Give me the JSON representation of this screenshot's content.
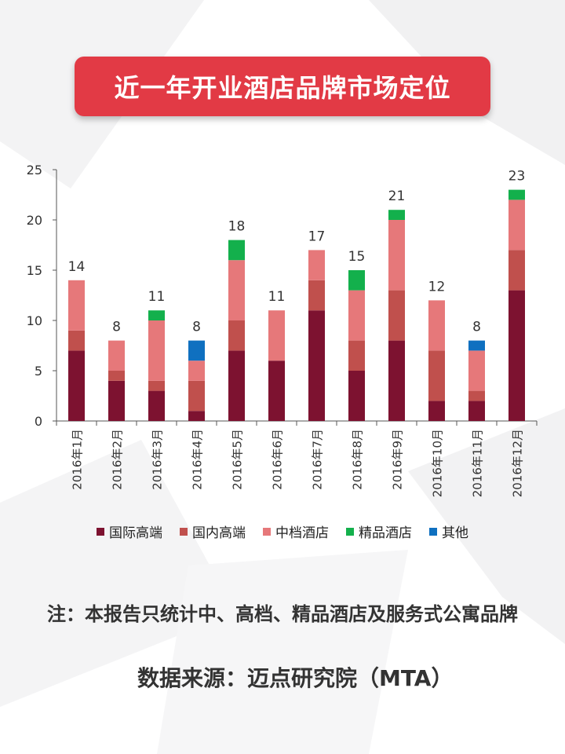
{
  "title": "近一年开业酒店品牌市场定位",
  "note": "注：本报告只统计中、高档、精品酒店及服务式公寓品牌",
  "source": "数据来源：迈点研究院（MTA）",
  "colors": {
    "banner": "#e23a45",
    "国际高端": "#7d1230",
    "国内高端": "#c0504d",
    "中档酒店": "#e6787a",
    "精品酒店": "#13b04c",
    "其他": "#0f70c0"
  },
  "chart_data": {
    "type": "bar",
    "stacked": true,
    "categories": [
      "2016年1月",
      "2016年2月",
      "2016年3月",
      "2016年4月",
      "2016年5月",
      "2016年6月",
      "2016年7月",
      "2016年8月",
      "2016年9月",
      "2016年10月",
      "2016年11月",
      "2016年12月"
    ],
    "series": [
      {
        "name": "国际高端",
        "values": [
          7,
          4,
          3,
          1,
          7,
          6,
          11,
          5,
          8,
          2,
          2,
          13
        ]
      },
      {
        "name": "国内高端",
        "values": [
          2,
          1,
          1,
          3,
          3,
          0,
          3,
          3,
          5,
          5,
          1,
          4
        ]
      },
      {
        "name": "中档酒店",
        "values": [
          5,
          3,
          6,
          2,
          6,
          5,
          3,
          5,
          7,
          5,
          4,
          5
        ]
      },
      {
        "name": "精品酒店",
        "values": [
          0,
          0,
          1,
          0,
          2,
          0,
          0,
          2,
          1,
          0,
          0,
          1
        ]
      },
      {
        "name": "其他",
        "values": [
          0,
          0,
          0,
          2,
          0,
          0,
          0,
          0,
          0,
          0,
          1,
          0
        ]
      }
    ],
    "totals": [
      14,
      8,
      11,
      8,
      18,
      11,
      17,
      15,
      21,
      12,
      8,
      23
    ],
    "ylim": [
      0,
      25
    ],
    "yticks": [
      0,
      5,
      10,
      15,
      20,
      25
    ],
    "grid": false,
    "legend": "bottom"
  }
}
